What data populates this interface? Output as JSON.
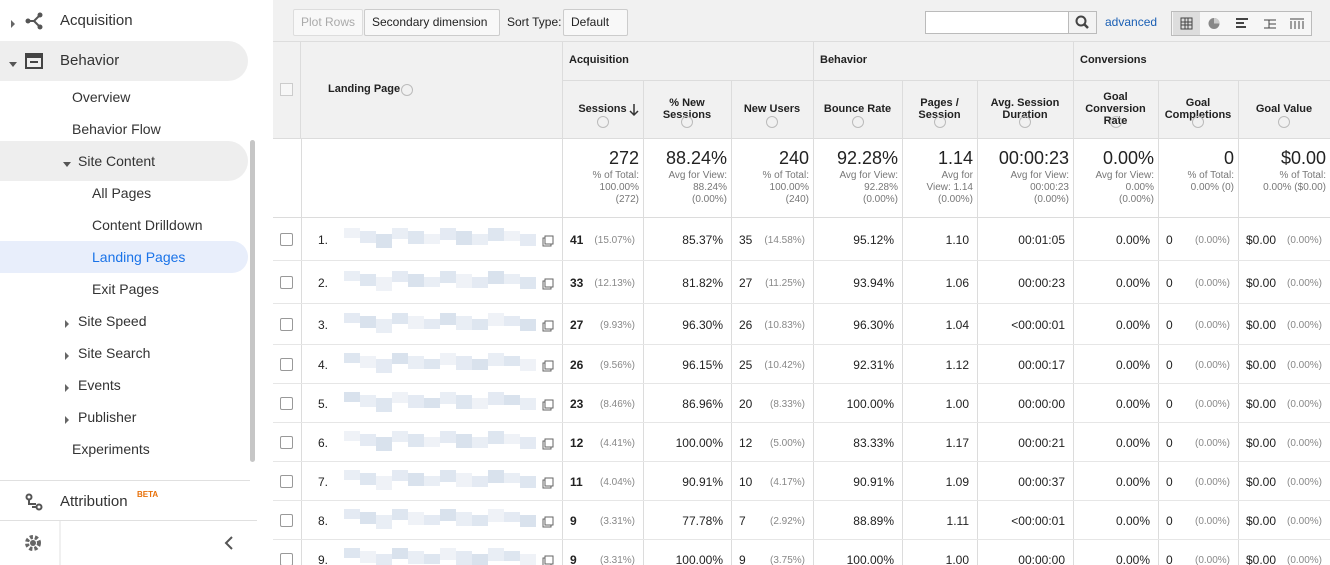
{
  "sidebar": {
    "items": [
      "Acquisition",
      "Behavior",
      "Overview",
      "Behavior Flow",
      "Site Content",
      "All Pages",
      "Content Drilldown",
      "Landing Pages",
      "Exit Pages",
      "Site Speed",
      "Site Search",
      "Events",
      "Publisher",
      "Experiments"
    ],
    "attribution": "Attribution",
    "beta": "BETA"
  },
  "toolbar": {
    "plot_rows": "Plot Rows",
    "secondary_dimension": "Secondary dimension",
    "sort_type": "Sort Type:",
    "sort_value": "Default",
    "advanced": "advanced"
  },
  "table": {
    "groups": [
      "Acquisition",
      "Behavior",
      "Conversions"
    ],
    "landing_page": "Landing Page",
    "columns": [
      "Sessions",
      "% New Sessions",
      "New Users",
      "Bounce Rate",
      "Pages / Session",
      "Avg. Session Duration",
      "Goal Conversion Rate",
      "Goal Completions",
      "Goal Value"
    ],
    "totals": [
      {
        "value": "272",
        "sub": [
          "% of Total:",
          "100.00%",
          "(272)"
        ]
      },
      {
        "value": "88.24%",
        "sub": [
          "Avg for View:",
          "88.24%",
          "(0.00%)"
        ]
      },
      {
        "value": "240",
        "sub": [
          "% of Total:",
          "100.00%",
          "(240)"
        ]
      },
      {
        "value": "92.28%",
        "sub": [
          "Avg for View:",
          "92.28%",
          "(0.00%)"
        ]
      },
      {
        "value": "1.14",
        "sub": [
          "Avg for",
          "View: 1.14",
          "(0.00%)"
        ]
      },
      {
        "value": "00:00:23",
        "sub": [
          "Avg for View:",
          "00:00:23",
          "(0.00%)"
        ]
      },
      {
        "value": "0.00%",
        "sub": [
          "Avg for View:",
          "0.00%",
          "(0.00%)"
        ]
      },
      {
        "value": "0",
        "sub": [
          "% of Total:",
          "0.00% (0)"
        ]
      },
      {
        "value": "$0.00",
        "sub": [
          "% of Total:",
          "0.00% ($0.00)"
        ]
      }
    ],
    "rows": [
      {
        "index": "1.",
        "cells": [
          [
            "41",
            "(15.07%)"
          ],
          [
            "85.37%"
          ],
          [
            "35",
            "(14.58%)"
          ],
          [
            "95.12%"
          ],
          [
            "1.10"
          ],
          [
            "00:01:05"
          ],
          [
            "0.00%"
          ],
          [
            "0",
            "(0.00%)"
          ],
          [
            "$0.00",
            "(0.00%)"
          ]
        ]
      },
      {
        "index": "2.",
        "cells": [
          [
            "33",
            "(12.13%)"
          ],
          [
            "81.82%"
          ],
          [
            "27",
            "(11.25%)"
          ],
          [
            "93.94%"
          ],
          [
            "1.06"
          ],
          [
            "00:00:23"
          ],
          [
            "0.00%"
          ],
          [
            "0",
            "(0.00%)"
          ],
          [
            "$0.00",
            "(0.00%)"
          ]
        ]
      },
      {
        "index": "3.",
        "cells": [
          [
            "27",
            "(9.93%)"
          ],
          [
            "96.30%"
          ],
          [
            "26",
            "(10.83%)"
          ],
          [
            "96.30%"
          ],
          [
            "1.04"
          ],
          [
            "<00:00:01"
          ],
          [
            "0.00%"
          ],
          [
            "0",
            "(0.00%)"
          ],
          [
            "$0.00",
            "(0.00%)"
          ]
        ]
      },
      {
        "index": "4.",
        "cells": [
          [
            "26",
            "(9.56%)"
          ],
          [
            "96.15%"
          ],
          [
            "25",
            "(10.42%)"
          ],
          [
            "92.31%"
          ],
          [
            "1.12"
          ],
          [
            "00:00:17"
          ],
          [
            "0.00%"
          ],
          [
            "0",
            "(0.00%)"
          ],
          [
            "$0.00",
            "(0.00%)"
          ]
        ]
      },
      {
        "index": "5.",
        "cells": [
          [
            "23",
            "(8.46%)"
          ],
          [
            "86.96%"
          ],
          [
            "20",
            "(8.33%)"
          ],
          [
            "100.00%"
          ],
          [
            "1.00"
          ],
          [
            "00:00:00"
          ],
          [
            "0.00%"
          ],
          [
            "0",
            "(0.00%)"
          ],
          [
            "$0.00",
            "(0.00%)"
          ]
        ]
      },
      {
        "index": "6.",
        "cells": [
          [
            "12",
            "(4.41%)"
          ],
          [
            "100.00%"
          ],
          [
            "12",
            "(5.00%)"
          ],
          [
            "83.33%"
          ],
          [
            "1.17"
          ],
          [
            "00:00:21"
          ],
          [
            "0.00%"
          ],
          [
            "0",
            "(0.00%)"
          ],
          [
            "$0.00",
            "(0.00%)"
          ]
        ]
      },
      {
        "index": "7.",
        "cells": [
          [
            "11",
            "(4.04%)"
          ],
          [
            "90.91%"
          ],
          [
            "10",
            "(4.17%)"
          ],
          [
            "90.91%"
          ],
          [
            "1.09"
          ],
          [
            "00:00:37"
          ],
          [
            "0.00%"
          ],
          [
            "0",
            "(0.00%)"
          ],
          [
            "$0.00",
            "(0.00%)"
          ]
        ]
      },
      {
        "index": "8.",
        "cells": [
          [
            "9",
            "(3.31%)"
          ],
          [
            "77.78%"
          ],
          [
            "7",
            "(2.92%)"
          ],
          [
            "88.89%"
          ],
          [
            "1.11"
          ],
          [
            "<00:00:01"
          ],
          [
            "0.00%"
          ],
          [
            "0",
            "(0.00%)"
          ],
          [
            "$0.00",
            "(0.00%)"
          ]
        ]
      },
      {
        "index": "9.",
        "cells": [
          [
            "9",
            "(3.31%)"
          ],
          [
            "100.00%"
          ],
          [
            "9",
            "(3.75%)"
          ],
          [
            "100.00%"
          ],
          [
            "1.00"
          ],
          [
            "00:00:00"
          ],
          [
            "0.00%"
          ],
          [
            "0",
            "(0.00%)"
          ],
          [
            "$0.00",
            "(0.00%)"
          ]
        ]
      }
    ]
  }
}
